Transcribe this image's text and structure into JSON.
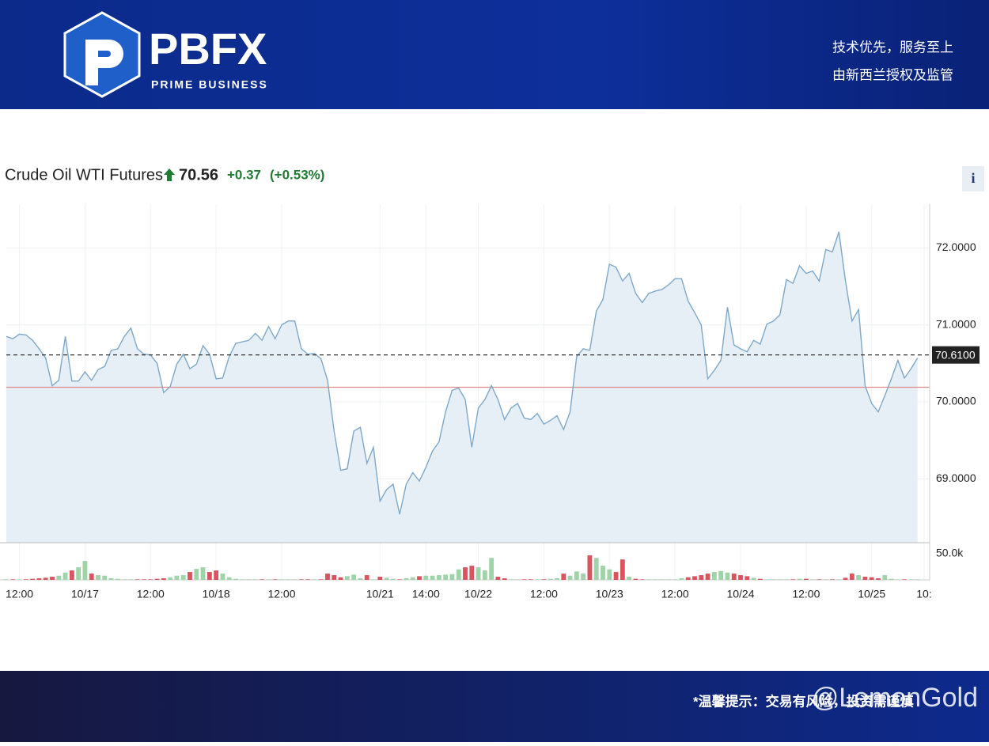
{
  "header": {
    "logo": "PBFX",
    "tagline": "PRIME BUSINESS",
    "slogan": [
      "技术优先，服务至上",
      "由新西兰授权及监管"
    ]
  },
  "info_button": "i",
  "footer": {
    "notice": "*温馨提示：交易有风险，投资需谨慎",
    "watermark": "@LemonGold"
  },
  "chart_data": {
    "type": "line",
    "title": "Crude Oil WTI Futures",
    "price": 70.56,
    "change": "+0.37",
    "change_pct": "(+0.53%)",
    "categories": [
      null,
      null,
      "12:00",
      null,
      null,
      null,
      null,
      null,
      null,
      null,
      null,
      null,
      "10/17",
      null,
      null,
      null,
      null,
      null,
      null,
      null,
      null,
      null,
      "12:00",
      null,
      null,
      null,
      null,
      null,
      null,
      null,
      null,
      null,
      "10/18",
      null,
      null,
      null,
      null,
      null,
      null,
      null,
      null,
      null,
      "12:00",
      null,
      null,
      null,
      null,
      null,
      null,
      null,
      null,
      null,
      null,
      null,
      null,
      null,
      null,
      "10/21",
      null,
      null,
      null,
      null,
      null,
      null,
      "14:00",
      null,
      null,
      null,
      null,
      null,
      null,
      null,
      "10/22",
      null,
      null,
      null,
      null,
      null,
      null,
      null,
      null,
      null,
      "12:00",
      null,
      null,
      null,
      null,
      null,
      null,
      null,
      null,
      null,
      "10/23",
      null,
      null,
      null,
      null,
      null,
      null,
      null,
      null,
      null,
      "12:00",
      null,
      null,
      null,
      null,
      null,
      null,
      null,
      null,
      null,
      "10/24",
      null,
      null,
      null,
      null,
      null,
      null,
      null,
      null,
      null,
      "12:00",
      null,
      null,
      null,
      null,
      null,
      null,
      null,
      null,
      null,
      "10/25",
      null,
      null,
      null,
      null,
      null,
      null,
      null,
      "10:"
    ],
    "series": [
      {
        "color": "#7fa8c9",
        "fill": "#e6eef6",
        "values": [
          70.85,
          70.82,
          70.88,
          70.87,
          70.8,
          70.69,
          70.57,
          70.21,
          70.28,
          70.85,
          70.27,
          70.27,
          70.39,
          70.28,
          70.42,
          70.46,
          70.67,
          70.69,
          70.85,
          70.96,
          70.69,
          70.62,
          70.61,
          70.5,
          70.12,
          70.2,
          70.49,
          70.62,
          70.43,
          70.49,
          70.73,
          70.62,
          70.3,
          70.31,
          70.59,
          70.76,
          70.78,
          70.8,
          70.89,
          70.8,
          70.98,
          70.82,
          71.0,
          71.05,
          71.05,
          70.69,
          70.62,
          70.63,
          70.56,
          70.28,
          69.62,
          69.11,
          69.13,
          69.62,
          69.67,
          69.2,
          69.41,
          68.71,
          68.86,
          68.93,
          68.54,
          68.93,
          69.08,
          68.97,
          69.15,
          69.36,
          69.48,
          69.87,
          70.15,
          70.18,
          70.03,
          69.41,
          69.92,
          70.03,
          70.21,
          70.03,
          69.77,
          69.92,
          69.98,
          69.79,
          69.77,
          69.85,
          69.71,
          69.76,
          69.82,
          69.64,
          69.87,
          70.59,
          70.69,
          70.67,
          71.18,
          71.33,
          71.79,
          71.75,
          71.57,
          71.67,
          71.41,
          71.29,
          71.41,
          71.44,
          71.46,
          71.52,
          71.6,
          71.6,
          71.31,
          71.16,
          71.0,
          70.3,
          70.41,
          70.54,
          71.23,
          70.74,
          70.69,
          70.65,
          70.8,
          70.75,
          71.01,
          71.05,
          71.13,
          71.59,
          71.54,
          71.77,
          71.67,
          71.7,
          71.57,
          71.98,
          71.95,
          72.21,
          71.57,
          71.05,
          71.2,
          70.21,
          69.98,
          69.87,
          70.08,
          70.3,
          70.54,
          70.31,
          70.43,
          70.57,
          null
        ]
      },
      {
        "type": "bar",
        "axis": "y2",
        "up_color": "#9fd3a8",
        "down_color": "#d9545e",
        "values": [
          1000,
          1000,
          1000,
          1000,
          2000,
          3000,
          4000,
          6000,
          8000,
          14000,
          18000,
          24000,
          36000,
          12000,
          9000,
          8000,
          3000,
          2000,
          1000,
          1000,
          1000,
          1000,
          1000,
          2000,
          3000,
          5000,
          8000,
          9000,
          15000,
          21000,
          24000,
          15000,
          18000,
          12000,
          5000,
          2000,
          1000,
          1000,
          1000,
          1000,
          1000,
          1000,
          1000,
          1000,
          1000,
          1000,
          1000,
          1000,
          1000,
          12000,
          9000,
          5000,
          7000,
          10000,
          3000,
          9000,
          1000,
          6000,
          4000,
          2000,
          1000,
          3000,
          5000,
          7000,
          8000,
          8000,
          9000,
          10000,
          11000,
          20000,
          24000,
          27000,
          24000,
          18000,
          42000,
          6000,
          3000,
          1000,
          1000,
          1000,
          1000,
          1000,
          1000,
          2000,
          3000,
          12000,
          8000,
          16000,
          12000,
          47000,
          42000,
          27000,
          20000,
          15000,
          39000,
          6000,
          2000,
          1000,
          1000,
          1000,
          1000,
          1000,
          1000,
          3000,
          5000,
          7000,
          9000,
          12000,
          15000,
          17000,
          14000,
          12000,
          9000,
          7000,
          4000,
          2000,
          1000,
          1000,
          1000,
          1000,
          1000,
          2000,
          2000,
          1000,
          1000,
          1000,
          1000,
          1000,
          4000,
          12000,
          9000,
          6000,
          5000,
          3000,
          9000,
          2000,
          1000,
          1000,
          1000,
          1000,
          null
        ]
      }
    ],
    "ylim": [
      68.17,
      72.57
    ],
    "yticks": [
      {
        "value": 69,
        "label": "69.0000"
      },
      {
        "value": 70,
        "label": "70.0000"
      },
      {
        "value": 71,
        "label": "71.0000"
      },
      {
        "value": 72,
        "label": "72.0000"
      }
    ],
    "y2lim": [
      0,
      68000
    ],
    "y2ticks": [
      {
        "value": 50000,
        "label": "50.0k"
      }
    ],
    "last_price": {
      "value": 70.61,
      "label": "70.6100"
    },
    "previous_close": 70.19,
    "previous_close_color": "#e08a8a",
    "grid": true
  }
}
